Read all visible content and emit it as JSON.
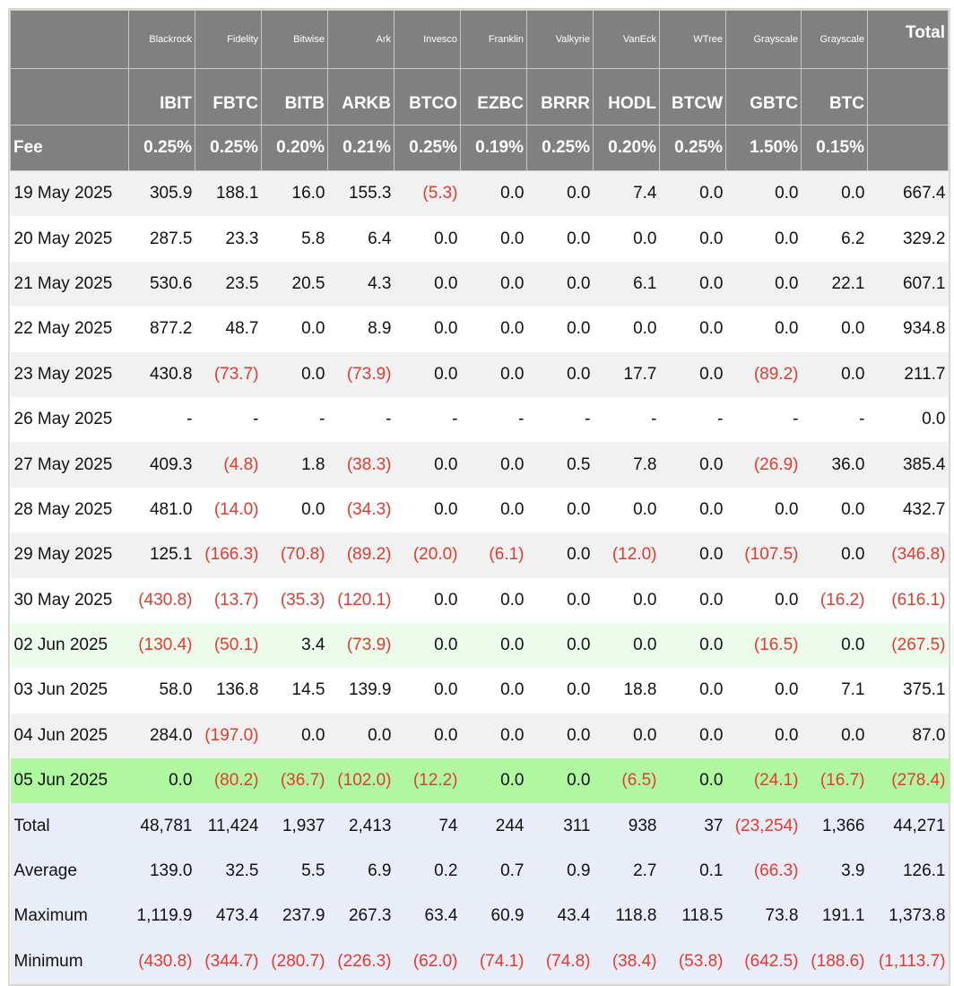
{
  "header": {
    "issuers": [
      "Blackrock",
      "Fidelity",
      "Bitwise",
      "Ark",
      "Invesco",
      "Franklin",
      "Valkyrie",
      "VanEck",
      "WTree",
      "Grayscale",
      "Grayscale"
    ],
    "total_label": "Total",
    "tickers": [
      "IBIT",
      "FBTC",
      "BITB",
      "ARKB",
      "BTCO",
      "EZBC",
      "BRRR",
      "HODL",
      "BTCW",
      "GBTC",
      "BTC"
    ],
    "fee_label": "Fee",
    "fees": [
      "0.25%",
      "0.25%",
      "0.20%",
      "0.21%",
      "0.25%",
      "0.19%",
      "0.25%",
      "0.20%",
      "0.25%",
      "1.50%",
      "0.15%"
    ]
  },
  "rows": [
    {
      "date": "19 May 2025",
      "values": [
        "305.9",
        "188.1",
        "16.0",
        "155.3",
        "(5.3)",
        "0.0",
        "0.0",
        "7.4",
        "0.0",
        "0.0",
        "0.0",
        "667.4"
      ]
    },
    {
      "date": "20 May 2025",
      "values": [
        "287.5",
        "23.3",
        "5.8",
        "6.4",
        "0.0",
        "0.0",
        "0.0",
        "0.0",
        "0.0",
        "0.0",
        "6.2",
        "329.2"
      ]
    },
    {
      "date": "21 May 2025",
      "values": [
        "530.6",
        "23.5",
        "20.5",
        "4.3",
        "0.0",
        "0.0",
        "0.0",
        "6.1",
        "0.0",
        "0.0",
        "22.1",
        "607.1"
      ]
    },
    {
      "date": "22 May 2025",
      "values": [
        "877.2",
        "48.7",
        "0.0",
        "8.9",
        "0.0",
        "0.0",
        "0.0",
        "0.0",
        "0.0",
        "0.0",
        "0.0",
        "934.8"
      ]
    },
    {
      "date": "23 May 2025",
      "values": [
        "430.8",
        "(73.7)",
        "0.0",
        "(73.9)",
        "0.0",
        "0.0",
        "0.0",
        "17.7",
        "0.0",
        "(89.2)",
        "0.0",
        "211.7"
      ]
    },
    {
      "date": "26 May 2025",
      "values": [
        "-",
        "-",
        "-",
        "-",
        "-",
        "-",
        "-",
        "-",
        "-",
        "-",
        "-",
        "0.0"
      ]
    },
    {
      "date": "27 May 2025",
      "values": [
        "409.3",
        "(4.8)",
        "1.8",
        "(38.3)",
        "0.0",
        "0.0",
        "0.5",
        "7.8",
        "0.0",
        "(26.9)",
        "36.0",
        "385.4"
      ]
    },
    {
      "date": "28 May 2025",
      "values": [
        "481.0",
        "(14.0)",
        "0.0",
        "(34.3)",
        "0.0",
        "0.0",
        "0.0",
        "0.0",
        "0.0",
        "0.0",
        "0.0",
        "432.7"
      ]
    },
    {
      "date": "29 May 2025",
      "values": [
        "125.1",
        "(166.3)",
        "(70.8)",
        "(89.2)",
        "(20.0)",
        "(6.1)",
        "0.0",
        "(12.0)",
        "0.0",
        "(107.5)",
        "0.0",
        "(346.8)"
      ]
    },
    {
      "date": "30 May 2025",
      "values": [
        "(430.8)",
        "(13.7)",
        "(35.3)",
        "(120.1)",
        "0.0",
        "0.0",
        "0.0",
        "0.0",
        "0.0",
        "0.0",
        "(16.2)",
        "(616.1)"
      ]
    },
    {
      "date": "02 Jun 2025",
      "values": [
        "(130.4)",
        "(50.1)",
        "3.4",
        "(73.9)",
        "0.0",
        "0.0",
        "0.0",
        "0.0",
        "0.0",
        "(16.5)",
        "0.0",
        "(267.5)"
      ],
      "highlight": "light"
    },
    {
      "date": "03 Jun 2025",
      "values": [
        "58.0",
        "136.8",
        "14.5",
        "139.9",
        "0.0",
        "0.0",
        "0.0",
        "18.8",
        "0.0",
        "0.0",
        "7.1",
        "375.1"
      ]
    },
    {
      "date": "04 Jun 2025",
      "values": [
        "284.0",
        "(197.0)",
        "0.0",
        "0.0",
        "0.0",
        "0.0",
        "0.0",
        "0.0",
        "0.0",
        "0.0",
        "0.0",
        "87.0"
      ]
    },
    {
      "date": "05 Jun 2025",
      "values": [
        "0.0",
        "(80.2)",
        "(36.7)",
        "(102.0)",
        "(12.2)",
        "0.0",
        "0.0",
        "(6.5)",
        "0.0",
        "(24.1)",
        "(16.7)",
        "(278.4)"
      ],
      "highlight": "strong"
    }
  ],
  "summary": [
    {
      "label": "Total",
      "values": [
        "48,781",
        "11,424",
        "1,937",
        "2,413",
        "74",
        "244",
        "311",
        "938",
        "37",
        "(23,254)",
        "1,366",
        "44,271"
      ]
    },
    {
      "label": "Average",
      "values": [
        "139.0",
        "32.5",
        "5.5",
        "6.9",
        "0.2",
        "0.7",
        "0.9",
        "2.7",
        "0.1",
        "(66.3)",
        "3.9",
        "126.1"
      ]
    },
    {
      "label": "Maximum",
      "values": [
        "1,119.9",
        "473.4",
        "237.9",
        "267.3",
        "63.4",
        "60.9",
        "43.4",
        "118.8",
        "118.5",
        "73.8",
        "191.1",
        "1,373.8"
      ]
    },
    {
      "label": "Minimum",
      "values": [
        "(430.8)",
        "(344.7)",
        "(280.7)",
        "(226.3)",
        "(62.0)",
        "(74.1)",
        "(74.8)",
        "(38.4)",
        "(53.8)",
        "(642.5)",
        "(188.6)",
        "(1,113.7)"
      ]
    }
  ],
  "colors": {
    "header_bg": "#808080",
    "negative": "#e8392f",
    "highlight_light": "#ecfbec",
    "highlight_strong": "#b0f8a0",
    "summary_bg": "#e9edf8"
  }
}
